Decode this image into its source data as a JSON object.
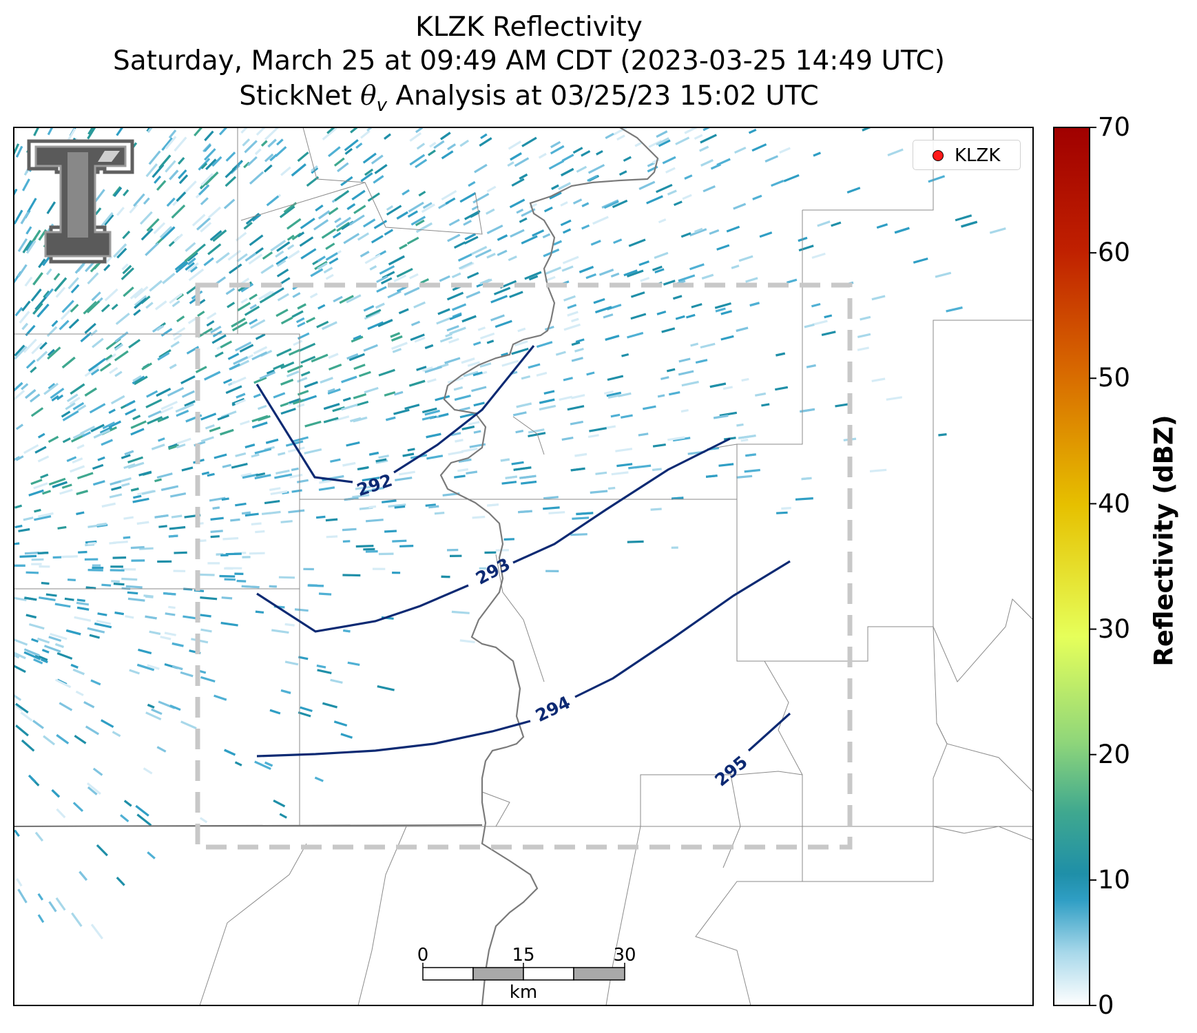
{
  "title": {
    "line1": "KLZK Reflectivity",
    "line2": "Saturday, March 25 at 09:49 AM CDT (2023-03-25 14:49 UTC)",
    "line3_prefix": "StickNet ",
    "line3_symbol": "θ",
    "line3_sub": "v",
    "line3_suffix": " Analysis at 03/25/23 15:02 UTC"
  },
  "legend": {
    "marker_color": "#ff1a1a",
    "label": "KLZK"
  },
  "colorbar": {
    "label": "Reflectivity (dBZ)",
    "range": [
      0,
      70
    ],
    "ticks": [
      "0",
      "10",
      "20",
      "30",
      "40",
      "50",
      "60",
      "70"
    ],
    "colormap": [
      "#ffffff",
      "#7fc4e0",
      "#2196b0",
      "#3fa88f",
      "#8fd67a",
      "#e6ff5a",
      "#e6c000",
      "#d86a00",
      "#c02000",
      "#a00000"
    ]
  },
  "contours": {
    "variable": "theta_v (K)",
    "color": "#0d2a73",
    "labels": [
      "292",
      "293",
      "294",
      "295"
    ]
  },
  "scale_bar": {
    "ticks": [
      "0",
      "15",
      "30"
    ],
    "unit": "km"
  },
  "analysis_box": {
    "color": "#c8c8c8",
    "style": "dashed"
  },
  "logo": "texas-tech-double-t-logo"
}
